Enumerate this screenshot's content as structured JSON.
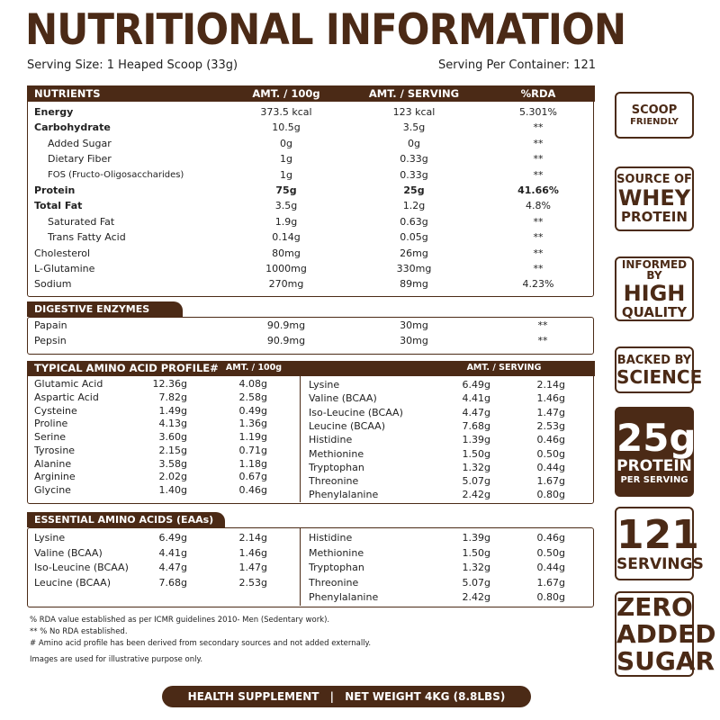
{
  "header": {
    "title": "NUTRITIONAL INFORMATION",
    "serving_size": "Serving Size: 1 Heaped Scoop (33g)",
    "servings_per_container": "Serving Per Container: 121"
  },
  "nutrients": {
    "headers": [
      "NUTRIENTS",
      "AMT. / 100g",
      "AMT. / SERVING",
      "%RDA"
    ],
    "rows": [
      [
        "Energy",
        "373.5 kcal",
        "123 kcal",
        "5.301%"
      ],
      [
        "Carbohydrate",
        "10.5g",
        "3.5g",
        "**"
      ],
      [
        "Added Sugar",
        "0g",
        "0g",
        "**"
      ],
      [
        "Dietary Fiber",
        "1g",
        "0.33g",
        "**"
      ],
      [
        "FOS (Fructo-Oligosaccharides)",
        "1g",
        "0.33g",
        "**"
      ],
      [
        "Protein",
        "75g",
        "25g",
        "41.66%"
      ],
      [
        "Total Fat",
        "3.5g",
        "1.2g",
        "4.8%"
      ],
      [
        "Saturated Fat",
        "1.9g",
        "0.63g",
        "**"
      ],
      [
        "Trans Fatty Acid",
        "0.14g",
        "0.05g",
        "**"
      ],
      [
        "Cholesterol",
        "80mg",
        "26mg",
        "**"
      ],
      [
        "L-Glutamine",
        "1000mg",
        "330mg",
        "**"
      ],
      [
        "Sodium",
        "270mg",
        "89mg",
        "4.23%"
      ]
    ]
  },
  "enzymes": {
    "title": "DIGESTIVE ENZYMES",
    "rows": [
      [
        "Papain",
        "90.9mg",
        "30mg",
        "**"
      ],
      [
        "Pepsin",
        "90.9mg",
        "30mg",
        "**"
      ]
    ]
  },
  "amino": {
    "title": "TYPICAL AMINO ACID PROFILE#",
    "headers": [
      "AMT. / 100g",
      "AMT. / SERVING"
    ],
    "left": [
      [
        "Glutamic Acid",
        "12.36g",
        "4.08g"
      ],
      [
        "Aspartic Acid",
        "7.82g",
        "2.58g"
      ],
      [
        "Cysteine",
        "1.49g",
        "0.49g"
      ],
      [
        "Proline",
        "4.13g",
        "1.36g"
      ],
      [
        "Serine",
        "3.60g",
        "1.19g"
      ],
      [
        "Tyrosine",
        "2.15g",
        "0.71g"
      ],
      [
        "Alanine",
        "3.58g",
        "1.18g"
      ],
      [
        "Arginine",
        "2.02g",
        "0.67g"
      ],
      [
        "Glycine",
        "1.40g",
        "0.46g"
      ]
    ],
    "right": [
      [
        "Lysine",
        "6.49g",
        "2.14g"
      ],
      [
        "Valine (BCAA)",
        "4.41g",
        "1.46g"
      ],
      [
        "Iso-Leucine (BCAA)",
        "4.47g",
        "1.47g"
      ],
      [
        "Leucine (BCAA)",
        "7.68g",
        "2.53g"
      ],
      [
        "Histidine",
        "1.39g",
        "0.46g"
      ],
      [
        "Methionine",
        "1.50g",
        "0.50g"
      ],
      [
        "Tryptophan",
        "1.32g",
        "0.44g"
      ],
      [
        "Threonine",
        "5.07g",
        "1.67g"
      ],
      [
        "Phenylalanine",
        "2.42g",
        "0.80g"
      ]
    ]
  },
  "eaa": {
    "title": "ESSENTIAL AMINO ACIDS (EAAs)",
    "left": [
      [
        "Lysine",
        "6.49g",
        "2.14g"
      ],
      [
        "Valine (BCAA)",
        "4.41g",
        "1.46g"
      ],
      [
        "Iso-Leucine (BCAA)",
        "4.47g",
        "1.47g"
      ],
      [
        "Leucine (BCAA)",
        "7.68g",
        "2.53g"
      ]
    ],
    "right": [
      [
        "Histidine",
        "1.39g",
        "0.46g"
      ],
      [
        "Methionine",
        "1.50g",
        "0.50g"
      ],
      [
        "Tryptophan",
        "1.32g",
        "0.44g"
      ],
      [
        "Threonine",
        "5.07g",
        "1.67g"
      ],
      [
        "Phenylalanine",
        "2.42g",
        "0.80g"
      ]
    ]
  },
  "footnotes": [
    "% RDA value established as per ICMR guidelines 2010- Men (Sedentary work).",
    "** % No RDA established.",
    "# Amino acid profile has been derived from secondary sources and not added externally.",
    "Images are used for illustrative purpose only."
  ],
  "footer": {
    "left": "HEALTH SUPPLEMENT",
    "separator": "|",
    "right": "NET WEIGHT 4KG (8.8LBS)"
  },
  "badges": [
    [
      "SCOOP",
      "FRIENDLY"
    ],
    [
      "SOURCE OF",
      "WHEY",
      "PROTEIN"
    ],
    [
      "INFORMED BY",
      "HIGH",
      "QUALITY"
    ],
    [
      "BACKED BY",
      "SCIENCE"
    ],
    [
      "25g",
      "PROTEIN",
      "PER SERVING"
    ],
    [
      "121",
      "SERVINGS"
    ],
    [
      "ZERO",
      "ADDED",
      "SUGAR"
    ]
  ]
}
